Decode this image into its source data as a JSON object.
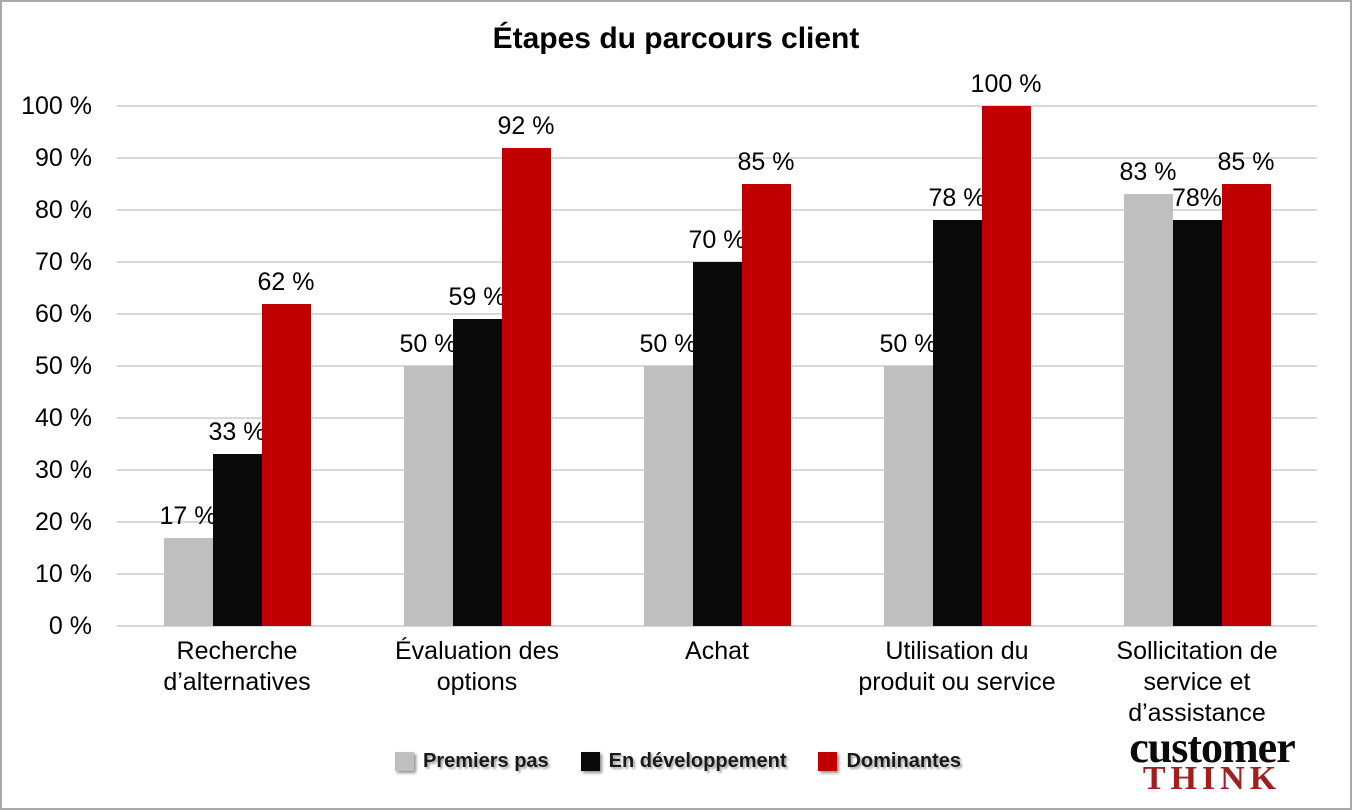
{
  "chart_data": {
    "type": "bar",
    "title": "Étapes du parcours client",
    "categories": [
      "Recherche d’alternatives",
      "Évaluation des options",
      "Achat",
      "Utilisation du produit ou service",
      "Sollicitation de service et d’assistance"
    ],
    "series": [
      {
        "name": "Premiers pas",
        "color": "#bfbfbf",
        "values": [
          17,
          50,
          50,
          50,
          83
        ],
        "labels": [
          "17 %",
          "50 %",
          "50 %",
          "50 %",
          "83 %"
        ]
      },
      {
        "name": "En développement",
        "color": "#0a0a0a",
        "values": [
          33,
          59,
          70,
          78,
          78
        ],
        "labels": [
          "33 %",
          "59 %",
          "70 %",
          "78 %",
          "78%"
        ]
      },
      {
        "name": "Dominantes",
        "color": "#c00000",
        "values": [
          62,
          92,
          85,
          100,
          85
        ],
        "labels": [
          "62 %",
          "92 %",
          "85 %",
          "100 %",
          "85 %"
        ]
      }
    ],
    "xlabel": "",
    "ylabel": "",
    "ylim": [
      0,
      100
    ],
    "y_tick_step": 10,
    "y_tick_labels": [
      "0 %",
      "10 %",
      "20 %",
      "30 %",
      "40 %",
      "50 %",
      "60 %",
      "70 %",
      "80 %",
      "90 %",
      "100 %"
    ],
    "grid": true,
    "legend_position": "bottom"
  },
  "colors": {
    "gridline": "#d9d9d9",
    "frame_border": "#a9a9a9",
    "logo_red": "#a02021",
    "text": "#000000"
  },
  "logo": {
    "line1": "customer",
    "line2": "THINK"
  }
}
